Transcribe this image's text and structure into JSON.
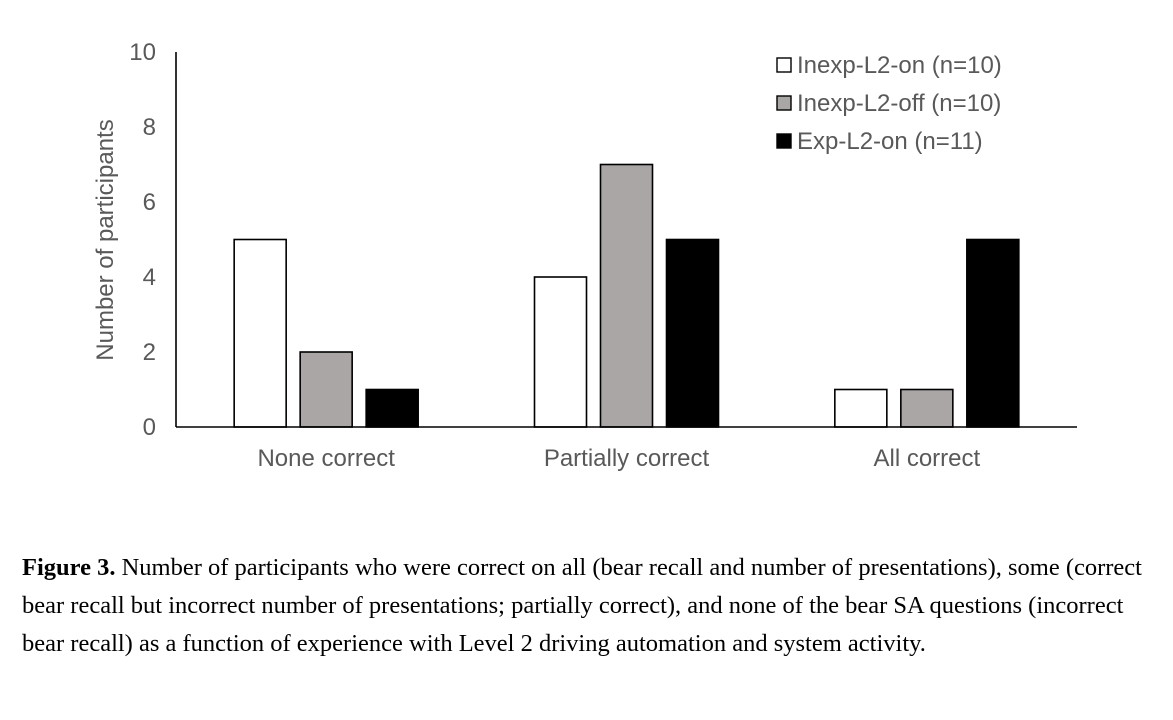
{
  "chart_data": {
    "type": "bar",
    "categories": [
      "None correct",
      "Partially correct",
      "All correct"
    ],
    "series": [
      {
        "name": "Inexp-L2-on (n=10)",
        "values": [
          5,
          4,
          1
        ],
        "color": "#ffffff"
      },
      {
        "name": "Inexp-L2-off (n=10)",
        "values": [
          2,
          7,
          1
        ],
        "color": "#a9a6a5"
      },
      {
        "name": "Exp-L2-on (n=11)",
        "values": [
          1,
          5,
          5
        ],
        "color": "#000000"
      }
    ],
    "ylabel": "Number of participants",
    "xlabel": "",
    "ylim": [
      0,
      10
    ],
    "yticks": [
      "0",
      "2",
      "4",
      "6",
      "8",
      "10"
    ],
    "grid": false,
    "legend_position": "top-right"
  },
  "caption": {
    "label": "Figure 3.",
    "text": " Number of participants who were correct on all (bear recall and number of presentations), some (correct bear recall but incorrect number of presentations; partially correct), and none of the bear SA questions (incorrect bear recall) as a function of experience with Level 2 driving automation and system activity."
  }
}
